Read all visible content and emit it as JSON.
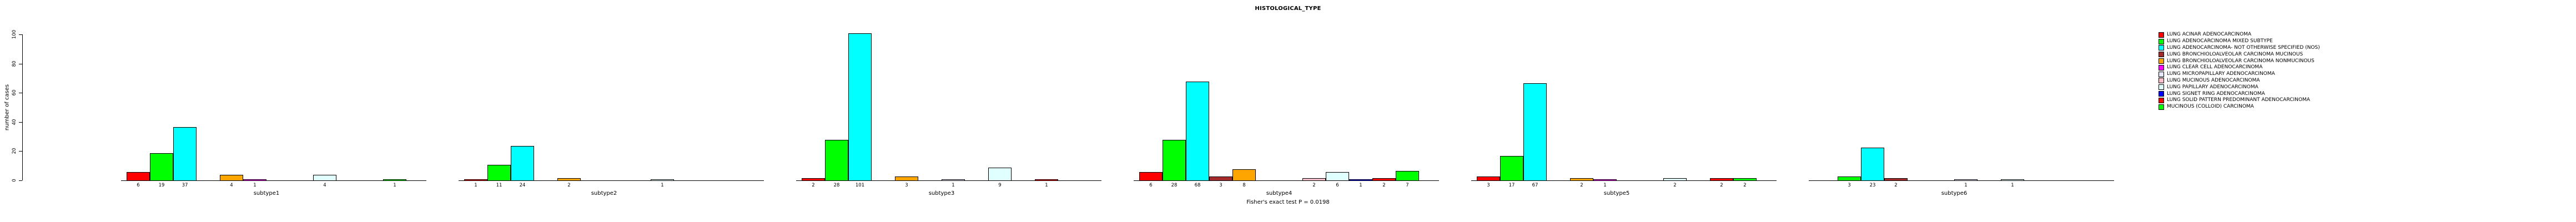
{
  "title": "HISTOLOGICAL_TYPE",
  "footer": "Fisher's exact test P = 0.0198",
  "chart_data": {
    "type": "bar",
    "title": "HISTOLOGICAL_TYPE",
    "ylabel": "number of cases",
    "ylim": [
      0,
      100
    ],
    "yticks": [
      0,
      20,
      40,
      60,
      80,
      100
    ],
    "grid": false,
    "legend_position": "top-right",
    "annotation": "Fisher's exact test P = 0.0198",
    "categories": [
      "LUNG ACINAR ADENOCARCINOMA",
      "LUNG ADENOCARCINOMA MIXED SUBTYPE",
      "LUNG ADENOCARCINOMA- NOT OTHERWISE SPECIFIED (NOS)",
      "LUNG BRONCHIOLOALVEOLAR CARCINOMA MUCINOUS",
      "LUNG BRONCHIOLOALVEOLAR CARCINOMA NONMUCINOUS",
      "LUNG CLEAR CELL ADENOCARCINOMA",
      "LUNG MICROPAPILLARY ADENOCARCINOMA",
      "LUNG MUCINOUS ADENOCARCINOMA",
      "LUNG PAPILLARY ADENOCARCINOMA",
      "LUNG SIGNET RING ADENOCARCINOMA",
      "LUNG SOLID PATTERN PREDOMINANT ADENOCARCINOMA",
      "MUCINOUS (COLLOID) CARCINOMA"
    ],
    "colors": [
      "#FF0000",
      "#00FF00",
      "#00FFFF",
      "#A52A2A",
      "#FFA500",
      "#FF00FF",
      "#E6E6FA",
      "#FFC0CB",
      "#E0FFFF",
      "#0000FF",
      "#FF0000",
      "#00FF00"
    ],
    "series": [
      {
        "name": "subtype1",
        "values": [
          6,
          19,
          37,
          0,
          4,
          1,
          0,
          0,
          4,
          0,
          0,
          1
        ]
      },
      {
        "name": "subtype2",
        "values": [
          1,
          11,
          24,
          0,
          2,
          0,
          0,
          0,
          1,
          0,
          0,
          0
        ]
      },
      {
        "name": "subtype3",
        "values": [
          2,
          28,
          101,
          0,
          3,
          0,
          1,
          0,
          9,
          0,
          1,
          0
        ]
      },
      {
        "name": "subtype4",
        "values": [
          6,
          28,
          68,
          3,
          8,
          0,
          0,
          2,
          6,
          1,
          2,
          7
        ]
      },
      {
        "name": "subtype5",
        "values": [
          3,
          17,
          67,
          0,
          2,
          1,
          0,
          0,
          2,
          0,
          2,
          2
        ]
      },
      {
        "name": "subtype6",
        "values": [
          0,
          3,
          23,
          2,
          0,
          0,
          1,
          0,
          1,
          0,
          0,
          0
        ]
      }
    ]
  }
}
